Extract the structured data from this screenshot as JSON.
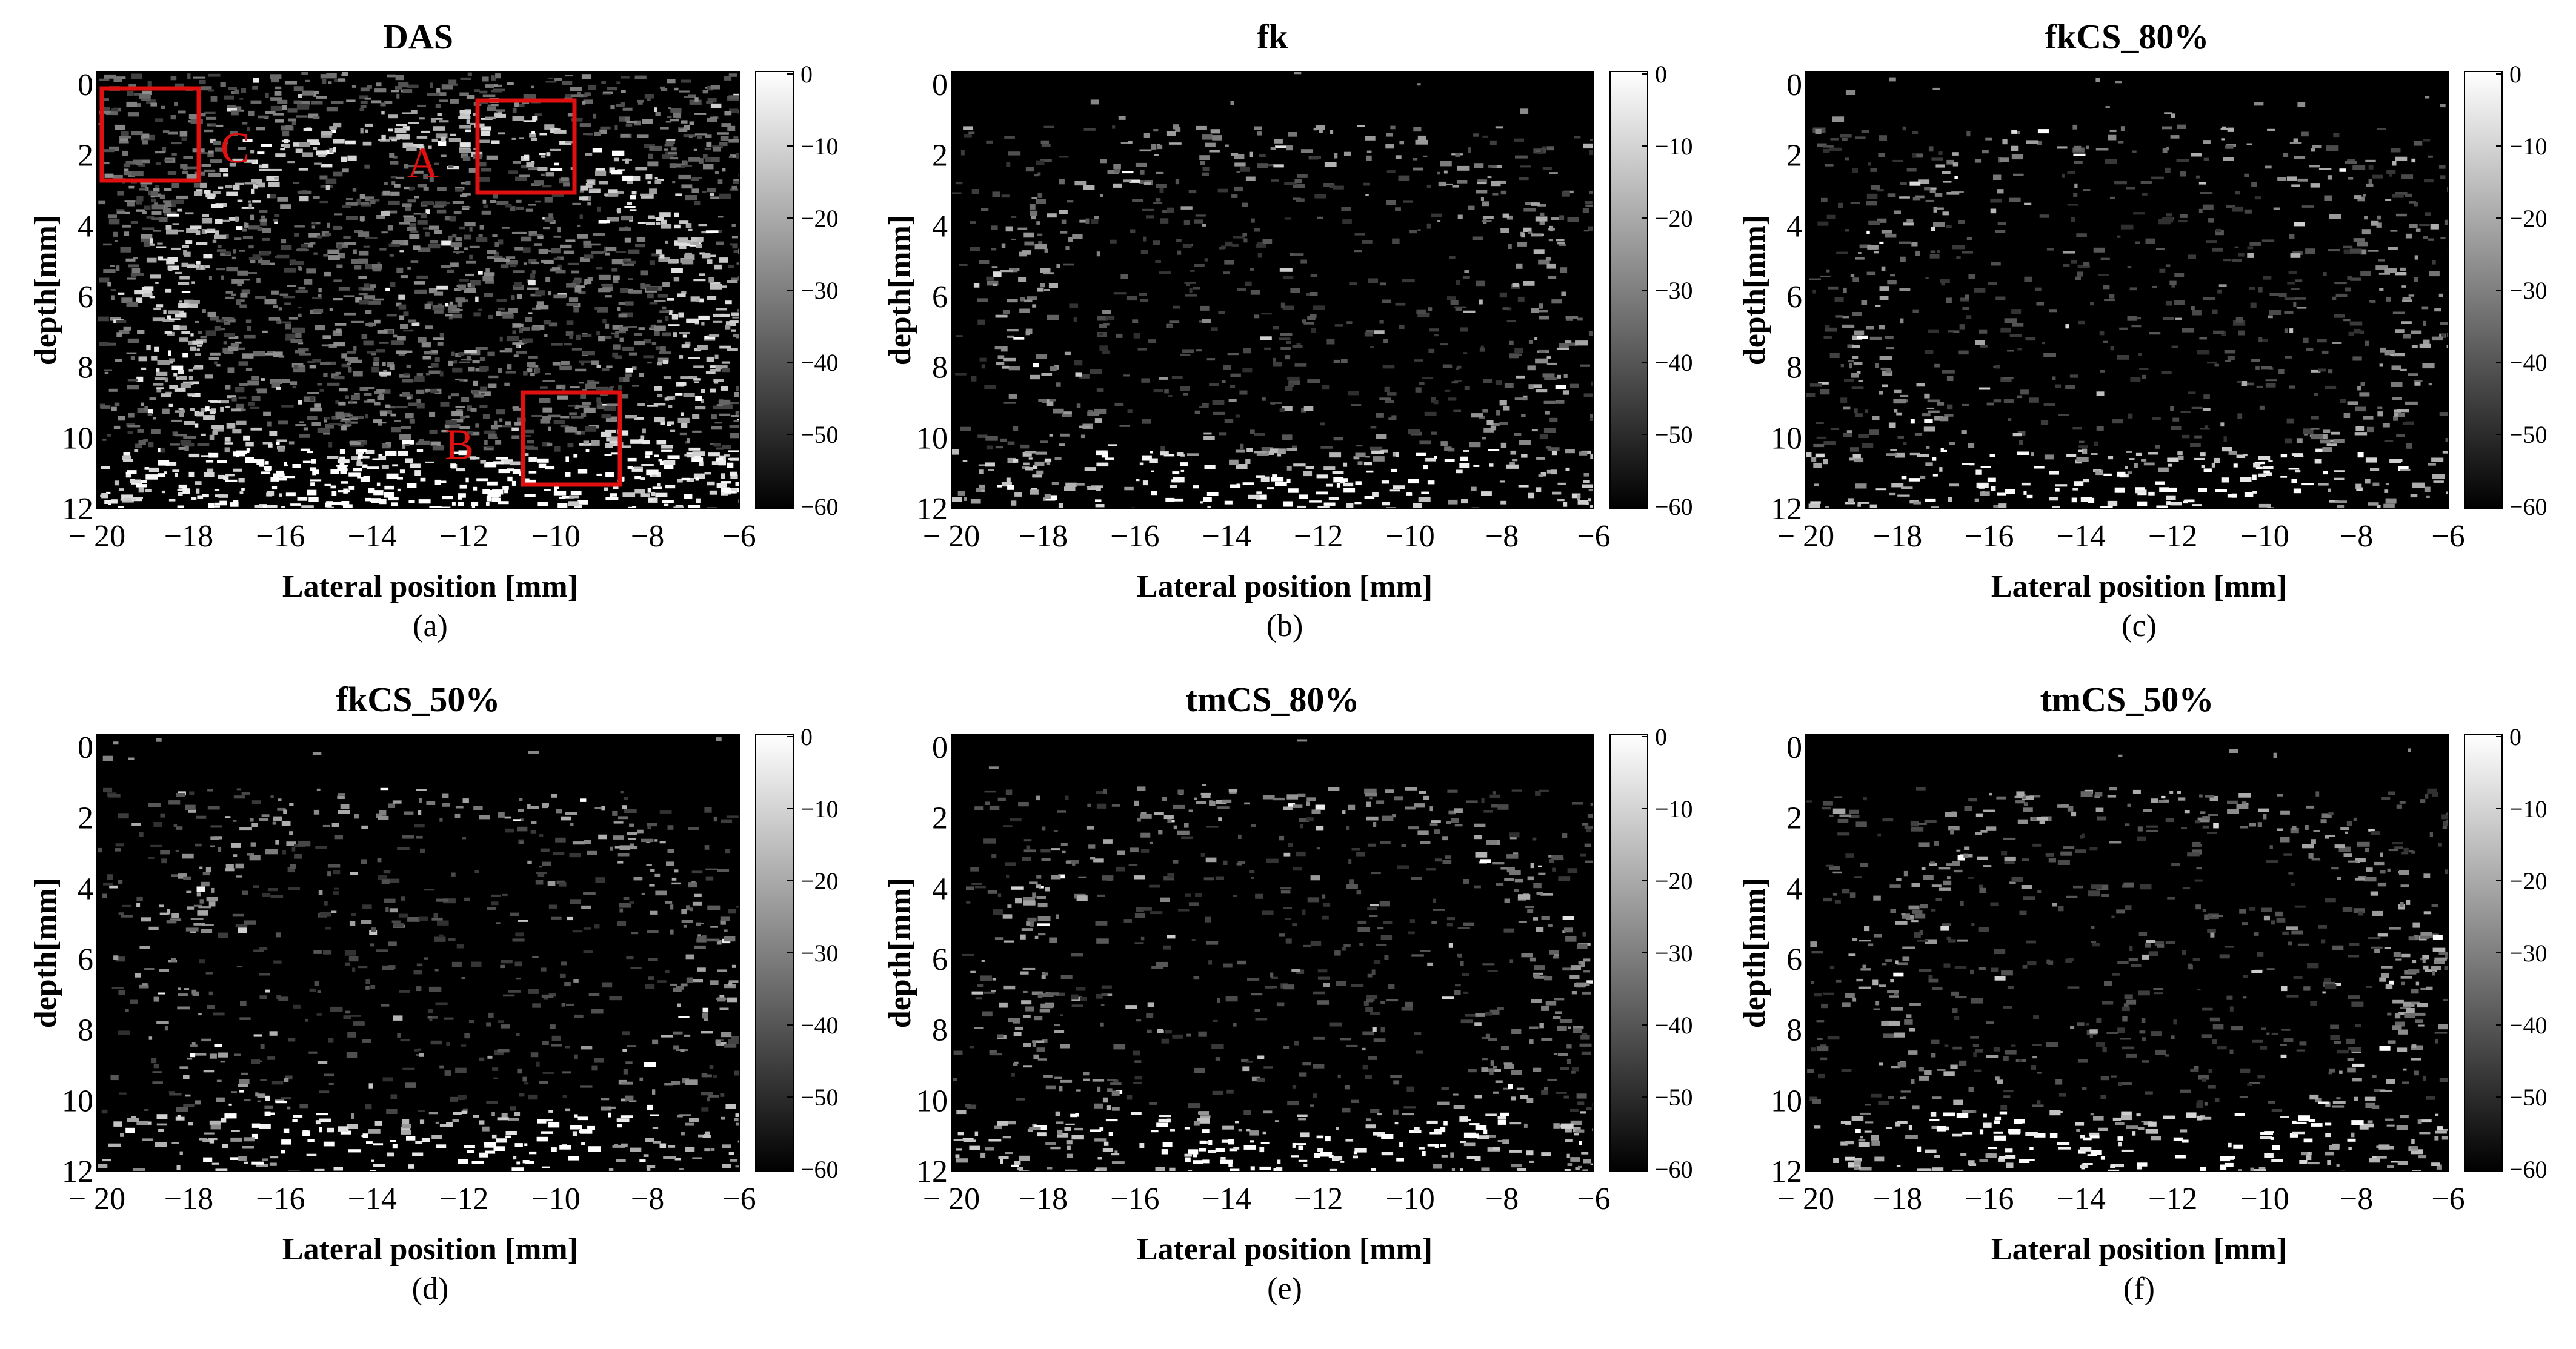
{
  "figure": {
    "panels": [
      {
        "id": "a",
        "title": "DAS",
        "caption": "(a)",
        "annotations": [
          "C",
          "A",
          "B"
        ]
      },
      {
        "id": "b",
        "title": "fk",
        "caption": "(b)",
        "annotations": []
      },
      {
        "id": "c",
        "title": "fkCS_80%",
        "caption": "(c)",
        "annotations": []
      },
      {
        "id": "d",
        "title": "fkCS_50%",
        "caption": "(d)",
        "annotations": []
      },
      {
        "id": "e",
        "title": "tmCS_80%",
        "caption": "(e)",
        "annotations": []
      },
      {
        "id": "f",
        "title": "tmCS_50%",
        "caption": "(f)",
        "annotations": []
      }
    ],
    "xlabel": "Lateral position [mm]",
    "ylabel": "depth[mm]",
    "x_ticks": [
      "− 20",
      "−18",
      "−16",
      "−14",
      "−12",
      "−10",
      "−8",
      "−6"
    ],
    "y_ticks": [
      "0",
      "2",
      "4",
      "6",
      "8",
      "10",
      "12"
    ],
    "colorbar_ticks": [
      "0",
      "−10",
      "−20",
      "−30",
      "−40",
      "−50",
      "−60"
    ],
    "colors": {
      "annotation": "#e01010",
      "background": "#ffffff",
      "image_low": "#000000",
      "image_high": "#ffffff"
    }
  }
}
